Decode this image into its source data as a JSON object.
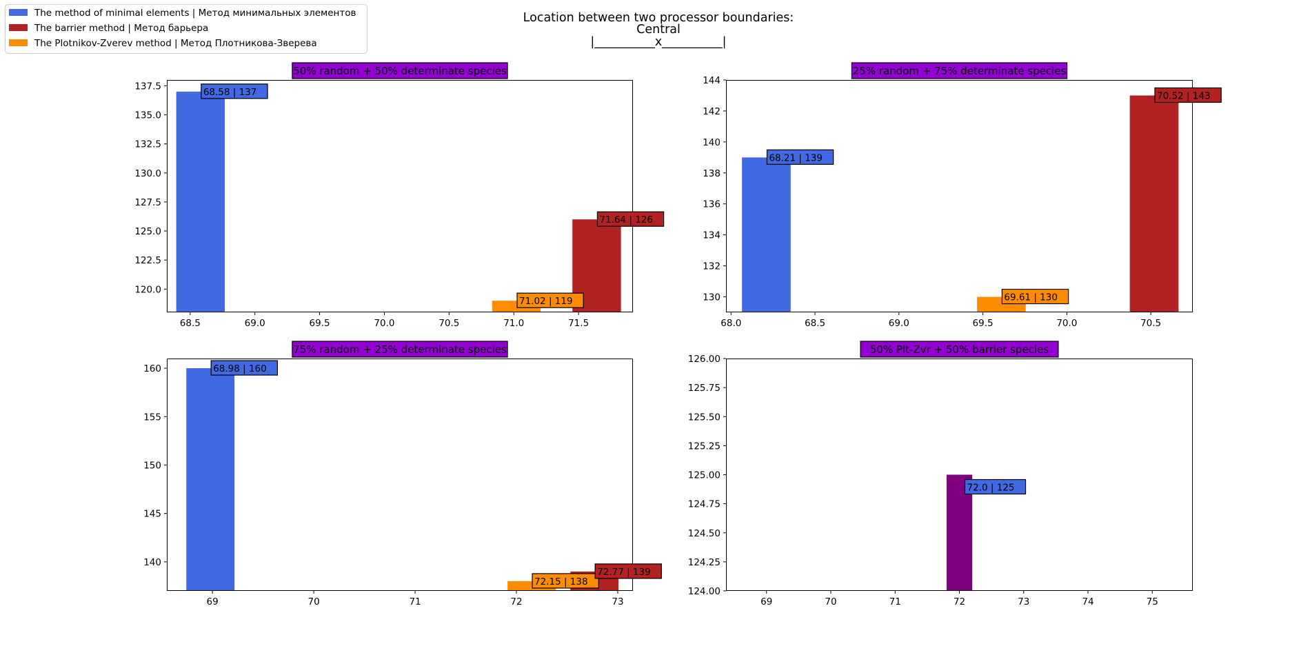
{
  "figure": {
    "suptitle_lines": [
      "Location between two processor boundaries:",
      "Central",
      "|__________x__________|"
    ]
  },
  "legend": {
    "items": [
      {
        "label": "The method of minimal elements | Метод минимальных элементов",
        "color": "#4169E1"
      },
      {
        "label": "The barrier method | Метод барьера",
        "color": "#B22222"
      },
      {
        "label": "The Plotnikov-Zverev method | Метод Плотникова-Зверева",
        "color": "#FF8C00"
      }
    ]
  },
  "colors": {
    "title_box": "#9400D3",
    "plt_zvr_bar": "#800080"
  },
  "chart_data": [
    {
      "type": "bar",
      "title": "50% random + 50% determinate species",
      "xlim": [
        68.32,
        71.92
      ],
      "ylim": [
        118.0,
        138.0
      ],
      "xticks": [
        68.5,
        69.0,
        69.5,
        70.0,
        70.5,
        71.0,
        71.5
      ],
      "xtick_labels": [
        "68.5",
        "69.0",
        "69.5",
        "70.0",
        "70.5",
        "71.0",
        "71.5"
      ],
      "yticks": [
        120.0,
        122.5,
        125.0,
        127.5,
        130.0,
        132.5,
        135.0,
        137.5
      ],
      "ytick_labels": [
        "120.0",
        "122.5",
        "125.0",
        "127.5",
        "130.0",
        "132.5",
        "135.0",
        "137.5"
      ],
      "bar_width": 0.375,
      "bars": [
        {
          "x": 68.58,
          "value": 137,
          "label": "68.58 | 137",
          "color": "#4169E1"
        },
        {
          "x": 71.02,
          "value": 119,
          "label": "71.02 | 119",
          "color": "#FF8C00"
        },
        {
          "x": 71.64,
          "value": 126,
          "label": "71.64 | 126",
          "color": "#B22222"
        }
      ]
    },
    {
      "type": "bar",
      "title": "25% random + 75% determinate species",
      "xlim": [
        67.97,
        70.75
      ],
      "ylim": [
        129.0,
        144.0
      ],
      "xticks": [
        68.0,
        68.5,
        69.0,
        69.5,
        70.0,
        70.5
      ],
      "xtick_labels": [
        "68.0",
        "68.5",
        "69.0",
        "69.5",
        "70.0",
        "70.5"
      ],
      "yticks": [
        130,
        132,
        134,
        136,
        138,
        140,
        142,
        144
      ],
      "ytick_labels": [
        "130",
        "132",
        "134",
        "136",
        "138",
        "140",
        "142",
        "144"
      ],
      "bar_width": 0.29,
      "bars": [
        {
          "x": 68.21,
          "value": 139,
          "label": "68.21 | 139",
          "color": "#4169E1"
        },
        {
          "x": 69.61,
          "value": 130,
          "label": "69.61 | 130",
          "color": "#FF8C00"
        },
        {
          "x": 70.52,
          "value": 143,
          "label": "70.52 | 143",
          "color": "#B22222"
        }
      ]
    },
    {
      "type": "bar",
      "title": "75% random + 25% determinate species",
      "xlim": [
        68.55,
        73.15
      ],
      "ylim": [
        137.0,
        161.0
      ],
      "xticks": [
        69,
        70,
        71,
        72,
        73
      ],
      "xtick_labels": [
        "69",
        "70",
        "71",
        "72",
        "73"
      ],
      "yticks": [
        140,
        145,
        150,
        155,
        160
      ],
      "ytick_labels": [
        "140",
        "145",
        "150",
        "155",
        "160"
      ],
      "bar_width": 0.475,
      "bars": [
        {
          "x": 68.98,
          "value": 160,
          "label": "68.98 | 160",
          "color": "#4169E1"
        },
        {
          "x": 72.15,
          "value": 138,
          "label": "72.15 | 138",
          "color": "#FF8C00"
        },
        {
          "x": 72.77,
          "value": 139,
          "label": "72.77 | 139",
          "color": "#B22222"
        }
      ]
    },
    {
      "type": "bar",
      "title": "50% Plt-Zvr + 50% barrier species",
      "xlim": [
        68.37,
        75.63
      ],
      "ylim": [
        124.0,
        126.0
      ],
      "xticks": [
        69,
        70,
        71,
        72,
        73,
        74,
        75
      ],
      "xtick_labels": [
        "69",
        "70",
        "71",
        "72",
        "73",
        "74",
        "75"
      ],
      "yticks": [
        124.0,
        124.25,
        124.5,
        124.75,
        125.0,
        125.25,
        125.5,
        125.75,
        126.0
      ],
      "ytick_labels": [
        "124.00",
        "124.25",
        "124.50",
        "124.75",
        "125.00",
        "125.25",
        "125.50",
        "125.75",
        "126.00"
      ],
      "bar_width": 0.4,
      "bars": [
        {
          "x": 72.0,
          "value": 125,
          "label": "72.0 | 125",
          "color": "#800080",
          "label_color": "#4169E1"
        }
      ]
    }
  ]
}
